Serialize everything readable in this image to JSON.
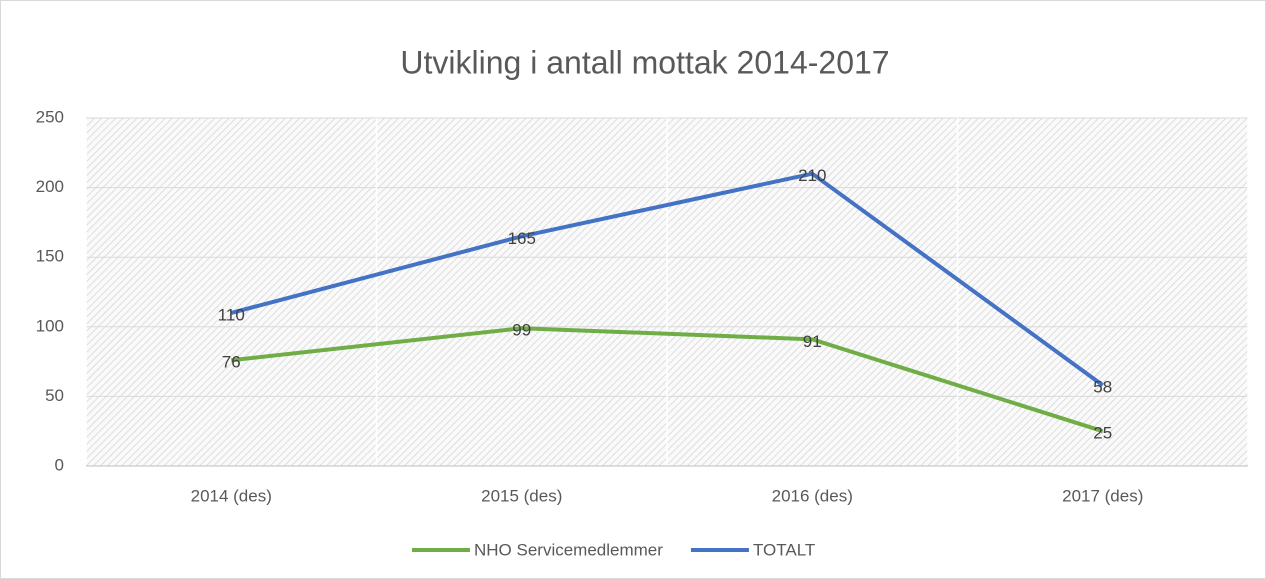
{
  "chart_data": {
    "type": "line",
    "title": "Utvikling i antall mottak 2014-2017",
    "categories": [
      "2014 (des)",
      "2015 (des)",
      "2016 (des)",
      "2017 (des)"
    ],
    "series": [
      {
        "name": "NHO Servicemedlemmer",
        "color": "#70ad47",
        "values": [
          76,
          99,
          91,
          25
        ]
      },
      {
        "name": "TOTALT",
        "color": "#4472c4",
        "values": [
          110,
          165,
          210,
          58
        ]
      }
    ],
    "ylim": [
      0,
      250
    ],
    "yticks": [
      0,
      50,
      100,
      150,
      200,
      250
    ],
    "grid": true,
    "legend": "bottom"
  }
}
